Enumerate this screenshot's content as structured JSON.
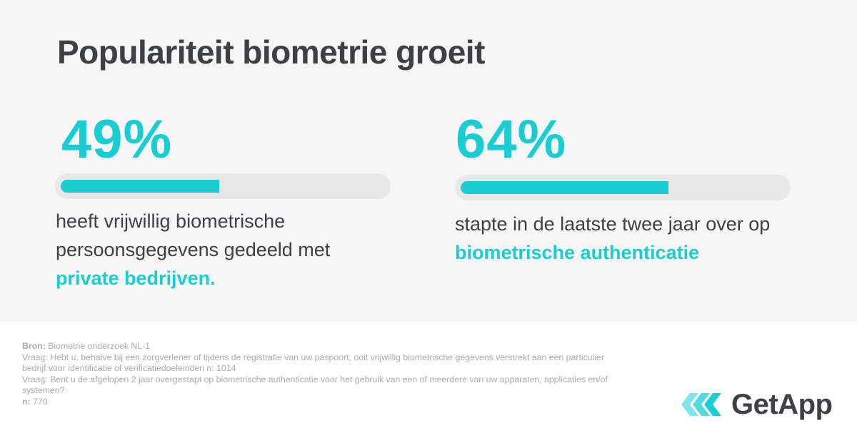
{
  "title": "Populariteit biometrie groeit",
  "stats": [
    {
      "value_label": "49%",
      "fraction": 0.49,
      "text_before": "heeft vrijwillig biometrische persoonsgegevens gedeeld met",
      "text_highlight": "private bedrijven."
    },
    {
      "value_label": "64%",
      "fraction": 0.64,
      "text_before": "stapte in de laatste twee jaar over op",
      "text_highlight": "biometrische authenticatie"
    }
  ],
  "footer": {
    "source_label": "Bron:",
    "source_text": "Biometrie onderzoek NL-1",
    "q1": "Vraag: Hebt u, behalve bij een zorgverlener of tijdens de registratie van uw paspoort, ooit vrijwillig biometrische gegevens verstrekt aan een particulier bedrijf voor identificatie of verificatiedoeleinden  n: 1014",
    "q2": "Vraag: Bent u de afgelopen 2 jaar overgestapt op biometrische authenticatie voor het gebruik van een of meerdere van uw apparaten, applicaties en/of systemen?",
    "n_label": "n:",
    "n_value": "770"
  },
  "logo": {
    "text": "GetApp",
    "icon": "getapp-logo-icon"
  },
  "colors": {
    "accent": "#19cdd2",
    "text": "#3d4047",
    "panel": "#f6f6f6",
    "track": "#e8e8e8",
    "footer_text": "#a9abae"
  }
}
